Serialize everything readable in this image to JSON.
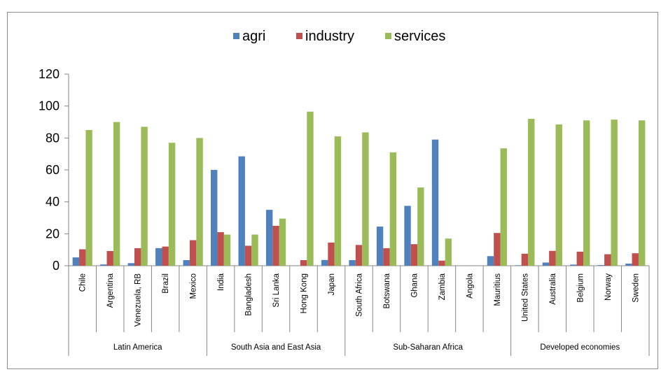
{
  "chart_data": {
    "type": "bar",
    "title": "",
    "xlabel": "",
    "ylabel": "",
    "ylim": [
      0,
      120
    ],
    "yticks": [
      0,
      20,
      40,
      60,
      80,
      100,
      120
    ],
    "grid": false,
    "legend_position": "top",
    "categories": [
      "Chile",
      "Argentina",
      "Venezuela, RB",
      "Brazil",
      "Mexico",
      "India",
      "Bangladesh",
      "Sri Lanka",
      "Hong Kong",
      "Japan",
      "South Africa",
      "Botswana",
      "Ghana",
      "Zambia",
      "Angola",
      "Mauritius",
      "United States",
      "Australia",
      "Belgium",
      "Norway",
      "Sweden"
    ],
    "groups": [
      {
        "label": "Latin America",
        "start": 0,
        "end": 4
      },
      {
        "label": "South Asia and East Asia",
        "start": 5,
        "end": 9
      },
      {
        "label": "Sub-Saharan Africa",
        "start": 10,
        "end": 15
      },
      {
        "label": "Developed economies",
        "start": 16,
        "end": 20
      }
    ],
    "series": [
      {
        "name": "agri",
        "color": "#4f81bd",
        "values": [
          5.2,
          0.8,
          1.6,
          11,
          3.5,
          60,
          68.5,
          35,
          0.1,
          3.6,
          3.5,
          24.5,
          37.5,
          79,
          0,
          6,
          0.3,
          2,
          0.7,
          0.4,
          1.3
        ]
      },
      {
        "name": "industry",
        "color": "#c0504d",
        "values": [
          10.3,
          9.2,
          11,
          12,
          16,
          21,
          12.5,
          25,
          3.5,
          14.5,
          13,
          11,
          13.5,
          3.2,
          0,
          20.5,
          7.5,
          9.3,
          8.8,
          7.2,
          7.8
        ]
      },
      {
        "name": "services",
        "color": "#9bbb59",
        "values": [
          85,
          90,
          87,
          77,
          80,
          19.5,
          19.5,
          29.5,
          96.5,
          81,
          83.5,
          71,
          49,
          17,
          0,
          73.5,
          92,
          88.5,
          91,
          91.5,
          91
        ]
      }
    ]
  }
}
